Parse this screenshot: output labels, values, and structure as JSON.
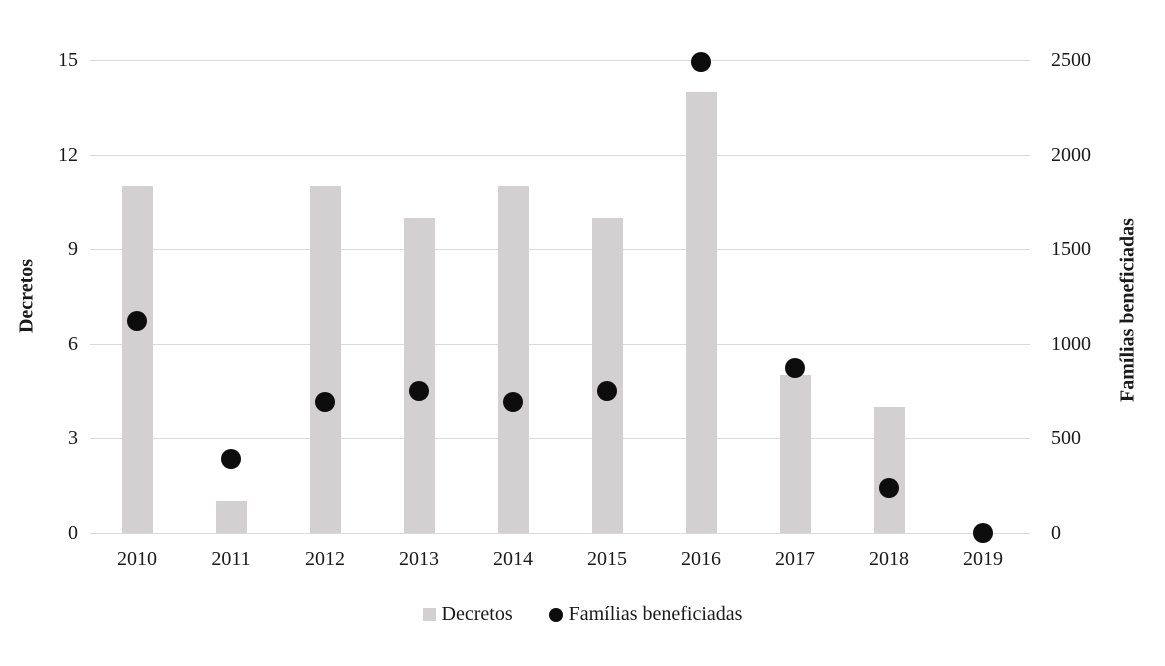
{
  "colors": {
    "bar": "#d2d0d0",
    "dot": "#0d0d0d",
    "gridline": "#dadada",
    "text": "#1a1a1a"
  },
  "legend": {
    "items": [
      {
        "label": "Decretos",
        "marker": "square"
      },
      {
        "label": "Famílias beneficiadas",
        "marker": "circle"
      }
    ]
  },
  "chart_data": {
    "type": "bar",
    "subtype": "combo-bar-scatter",
    "categories": [
      "2010",
      "2011",
      "2012",
      "2013",
      "2014",
      "2015",
      "2016",
      "2017",
      "2018",
      "2019"
    ],
    "series": [
      {
        "name": "Decretos",
        "type": "bar",
        "axis": "left",
        "values": [
          11,
          1,
          11,
          10,
          11,
          10,
          14,
          5,
          4,
          0
        ]
      },
      {
        "name": "Famílias beneficiadas",
        "type": "scatter",
        "axis": "right",
        "values": [
          1120,
          390,
          690,
          750,
          690,
          750,
          2490,
          870,
          240,
          0
        ]
      }
    ],
    "title": "",
    "xlabel": "",
    "ylabel_left": "Decretos",
    "ylabel_right": "Famílias beneficiadas",
    "yleft": {
      "min": 0,
      "max": 15,
      "step": 3,
      "ticks": [
        "0",
        "3",
        "6",
        "9",
        "12",
        "15"
      ]
    },
    "yright": {
      "min": 0,
      "max": 2500,
      "step": 500,
      "ticks": [
        "0",
        "500",
        "1000",
        "1500",
        "2000",
        "2500"
      ]
    },
    "grid": true,
    "legend_position": "bottom"
  }
}
